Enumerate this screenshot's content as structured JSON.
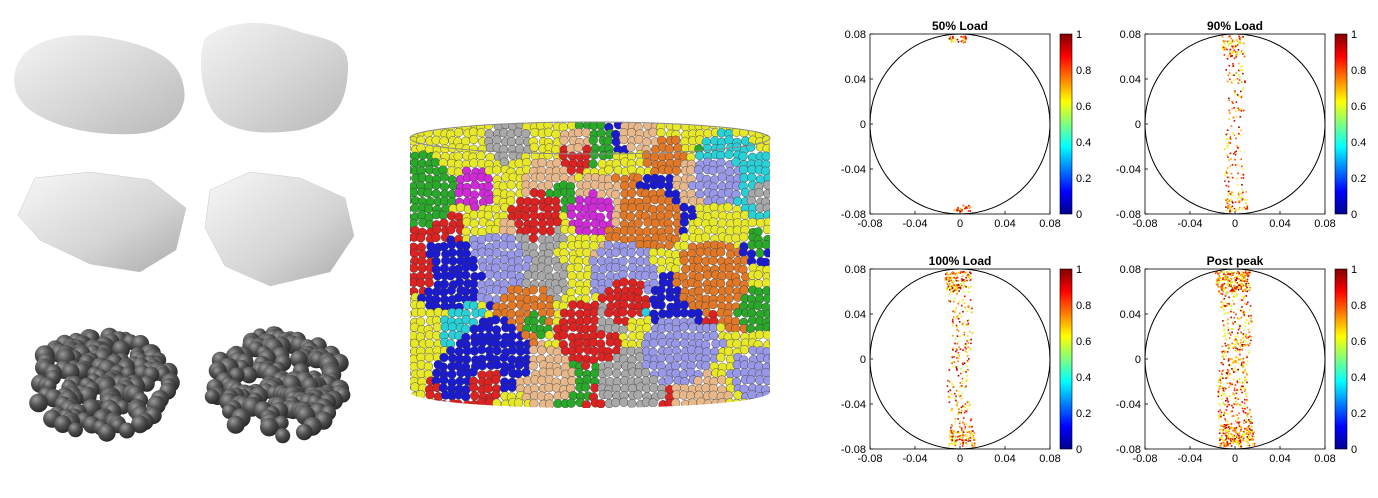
{
  "figure": {
    "left_panel": {
      "rows": [
        "surface-scan",
        "smoothed-mesh",
        "clumped-spheres"
      ],
      "surface_color": "#d6d6d6",
      "sphere_color": "#4a4a4a"
    },
    "middle_panel": {
      "grain_palette": [
        "#e8e82a",
        "#dd2222",
        "#d02ad8",
        "#2ad0d8",
        "#1a1ad0",
        "#2aa82a",
        "#e8b88a",
        "#9898e8",
        "#a8a8a8",
        "#e07828"
      ]
    }
  },
  "chart_data": [
    {
      "type": "scatter",
      "title": "50% Load",
      "xlim": [
        -0.08,
        0.08
      ],
      "ylim": [
        -0.08,
        0.08
      ],
      "xticks": [
        "-0.08",
        "-0.04",
        "0",
        "0.04",
        "0.08"
      ],
      "yticks": [
        "-0.08",
        "-0.04",
        "0",
        "0.04",
        "0.08"
      ],
      "colorbar": {
        "ticks": [
          "0",
          "0.2",
          "0.4",
          "0.6",
          "0.8",
          "1"
        ],
        "colormap": "jet"
      },
      "density": 0.05
    },
    {
      "type": "scatter",
      "title": "90% Load",
      "xlim": [
        -0.08,
        0.08
      ],
      "ylim": [
        -0.08,
        0.08
      ],
      "xticks": [
        "-0.08",
        "-0.04",
        "0",
        "0.04",
        "0.08"
      ],
      "yticks": [
        "-0.08",
        "-0.04",
        "0",
        "0.04",
        "0.08"
      ],
      "colorbar": {
        "ticks": [
          "0",
          "0.2",
          "0.4",
          "0.6",
          "0.8",
          "1"
        ],
        "colormap": "jet"
      },
      "density": 0.3
    },
    {
      "type": "scatter",
      "title": "100% Load",
      "xlim": [
        -0.08,
        0.08
      ],
      "ylim": [
        -0.08,
        0.08
      ],
      "xticks": [
        "-0.08",
        "-0.04",
        "0",
        "0.04",
        "0.08"
      ],
      "yticks": [
        "-0.08",
        "-0.04",
        "0",
        "0.04",
        "0.08"
      ],
      "colorbar": {
        "ticks": [
          "0",
          "0.2",
          "0.4",
          "0.6",
          "0.8",
          "1"
        ],
        "colormap": "jet"
      },
      "density": 0.5
    },
    {
      "type": "scatter",
      "title": "Post peak",
      "xlim": [
        -0.08,
        0.08
      ],
      "ylim": [
        -0.08,
        0.08
      ],
      "xticks": [
        "-0.08",
        "-0.04",
        "0",
        "0.04",
        "0.08"
      ],
      "yticks": [
        "-0.08",
        "-0.04",
        "0",
        "0.04",
        "0.08"
      ],
      "colorbar": {
        "ticks": [
          "0",
          "0.2",
          "0.4",
          "0.6",
          "0.8",
          "1"
        ],
        "colormap": "jet"
      },
      "density": 1.0
    }
  ]
}
